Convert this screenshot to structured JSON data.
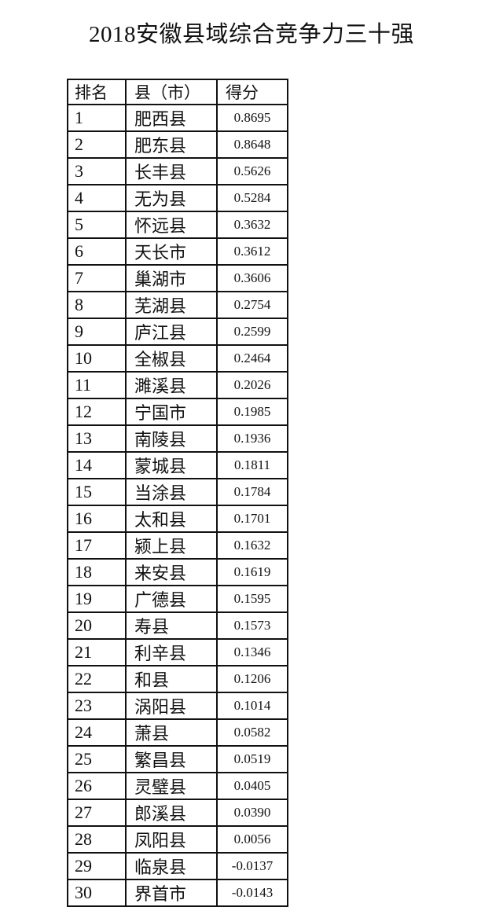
{
  "title": "2018安徽县域综合竞争力三十强",
  "table": {
    "headers": [
      "排名",
      "县（市）",
      "得分"
    ],
    "rows": [
      [
        "1",
        "肥西县",
        "0.8695"
      ],
      [
        "2",
        "肥东县",
        "0.8648"
      ],
      [
        "3",
        "长丰县",
        "0.5626"
      ],
      [
        "4",
        "无为县",
        "0.5284"
      ],
      [
        "5",
        "怀远县",
        "0.3632"
      ],
      [
        "6",
        "天长市",
        "0.3612"
      ],
      [
        "7",
        "巢湖市",
        "0.3606"
      ],
      [
        "8",
        "芜湖县",
        "0.2754"
      ],
      [
        "9",
        "庐江县",
        "0.2599"
      ],
      [
        "10",
        "全椒县",
        "0.2464"
      ],
      [
        "11",
        "濉溪县",
        "0.2026"
      ],
      [
        "12",
        "宁国市",
        "0.1985"
      ],
      [
        "13",
        "南陵县",
        "0.1936"
      ],
      [
        "14",
        "蒙城县",
        "0.1811"
      ],
      [
        "15",
        "当涂县",
        "0.1784"
      ],
      [
        "16",
        "太和县",
        "0.1701"
      ],
      [
        "17",
        "颍上县",
        "0.1632"
      ],
      [
        "18",
        "来安县",
        "0.1619"
      ],
      [
        "19",
        "广德县",
        "0.1595"
      ],
      [
        "20",
        "寿县",
        "0.1573"
      ],
      [
        "21",
        "利辛县",
        "0.1346"
      ],
      [
        "22",
        "和县",
        "0.1206"
      ],
      [
        "23",
        "涡阳县",
        "0.1014"
      ],
      [
        "24",
        "萧县",
        "0.0582"
      ],
      [
        "25",
        "繁昌县",
        "0.0519"
      ],
      [
        "26",
        "灵璧县",
        "0.0405"
      ],
      [
        "27",
        "郎溪县",
        "0.0390"
      ],
      [
        "28",
        "凤阳县",
        "0.0056"
      ],
      [
        "29",
        "临泉县",
        "-0.0137"
      ],
      [
        "30",
        "界首市",
        "-0.0143"
      ]
    ]
  }
}
